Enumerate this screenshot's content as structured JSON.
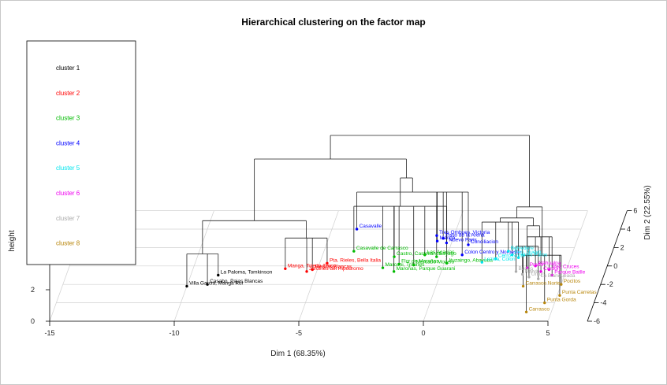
{
  "chart_data": {
    "type": "scatter",
    "title": "Hierarchical clustering on the factor map",
    "xlabel": "Dim 1 (68.35%)",
    "ylabel": "Dim 2 (22.55%)",
    "zlabel": "height",
    "xlim": [
      -15,
      5
    ],
    "ylim": [
      -6,
      6
    ],
    "x_ticks": [
      "-15",
      "-10",
      "-5",
      "0",
      "5"
    ],
    "y_ticks": [
      "-6",
      "-4",
      "-2",
      "0",
      "2",
      "4",
      "6"
    ],
    "z_ticks": [
      "0",
      "2"
    ],
    "legend": {
      "placement": "top-left",
      "entries": [
        {
          "name": "cluster 1",
          "color": "#000000"
        },
        {
          "name": "cluster 2",
          "color": "#ff0000"
        },
        {
          "name": "cluster 3",
          "color": "#00bb00"
        },
        {
          "name": "cluster 4",
          "color": "#0000ff"
        },
        {
          "name": "cluster 5",
          "color": "#00e5ee"
        },
        {
          "name": "cluster 6",
          "color": "#ee00ee"
        },
        {
          "name": "cluster 7",
          "color": "#aaaaaa"
        },
        {
          "name": "cluster 8",
          "color": "#b8860b"
        }
      ]
    },
    "points": [
      {
        "label": "Villa Garcia, Manga Rur",
        "cluster": 1,
        "dim1": -10.0,
        "dim2": -2.2
      },
      {
        "label": "Casabo, Pajas Blancas",
        "cluster": 1,
        "dim1": -9.2,
        "dim2": -2.0
      },
      {
        "label": "La Paloma, Tomkinson",
        "cluster": 1,
        "dim1": -8.9,
        "dim2": -1.0
      },
      {
        "label": "Manga, Toledo Chico",
        "cluster": 2,
        "dim1": -6.3,
        "dim2": -0.3
      },
      {
        "label": "Piedras Blancas",
        "cluster": 2,
        "dim1": -5.2,
        "dim2": -0.4
      },
      {
        "label": "Jardines del Hipodromo",
        "cluster": 2,
        "dim1": -5.4,
        "dim2": -0.6
      },
      {
        "label": "Pta. Rieles, Bella Italia",
        "cluster": 2,
        "dim1": -4.7,
        "dim2": 0.3
      },
      {
        "label": "Casavalle de Carrasco",
        "cluster": 3,
        "dim1": -3.8,
        "dim2": 1.6
      },
      {
        "label": "Marconi, Tritones",
        "cluster": 3,
        "dim1": -2.4,
        "dim2": -0.2
      },
      {
        "label": "Flor de Maroñas",
        "cluster": 3,
        "dim1": -1.8,
        "dim2": 0.2
      },
      {
        "label": "Castro, Castellanos",
        "cluster": 3,
        "dim1": -2.1,
        "dim2": 1.0
      },
      {
        "label": "Maroñas, Parque Guarani",
        "cluster": 3,
        "dim1": -1.9,
        "dim2": -0.6
      },
      {
        "label": "Mercado Modelo",
        "cluster": 3,
        "dim1": -1.2,
        "dim2": 0.1
      },
      {
        "label": "Las Acacias",
        "cluster": 3,
        "dim1": -0.9,
        "dim2": 1.2
      },
      {
        "label": "Sayago",
        "cluster": 3,
        "dim1": -0.4,
        "dim2": 1.0
      },
      {
        "label": "Ituzaingo, Abayuba",
        "cluster": 3,
        "dim1": 0.1,
        "dim2": 0.3
      },
      {
        "label": "Casavalle",
        "cluster": 4,
        "dim1": -4.0,
        "dim2": 4.0
      },
      {
        "label": "Tres Ombues, Victoria",
        "cluster": 4,
        "dim1": -0.7,
        "dim2": 3.3
      },
      {
        "label": "Paso de la Arena",
        "cluster": 4,
        "dim1": -0.4,
        "dim2": 3.0
      },
      {
        "label": "Manga",
        "cluster": 4,
        "dim1": -0.6,
        "dim2": 2.7
      },
      {
        "label": "Nuevo Paris",
        "cluster": 4,
        "dim1": -0.2,
        "dim2": 2.5
      },
      {
        "label": "Conciliacion",
        "cluster": 4,
        "dim1": 0.7,
        "dim2": 2.3
      },
      {
        "label": "Colon Centro y Noroeste",
        "cluster": 4,
        "dim1": 0.6,
        "dim2": 1.2
      },
      {
        "label": "Lezica, Colon",
        "cluster": 5,
        "dim1": 1.5,
        "dim2": 0.4
      },
      {
        "label": "Cerro Norte",
        "cluster": 5,
        "dim1": 2.0,
        "dim2": 0.8
      },
      {
        "label": "Belvedere",
        "cluster": 5,
        "dim1": 2.4,
        "dim2": 1.6
      },
      {
        "label": "Pen. Nuevo",
        "cluster": 5,
        "dim1": 2.6,
        "dim2": 1.2
      },
      {
        "label": "Aires Puros",
        "cluster": 5,
        "dim1": 2.9,
        "dim2": 0.9
      },
      {
        "label": "Prado",
        "cluster": 6,
        "dim1": 3.4,
        "dim2": -0.2
      },
      {
        "label": "Atahualpa",
        "cluster": 6,
        "dim1": 3.7,
        "dim2": 0.0
      },
      {
        "label": "Cordon",
        "cluster": 6,
        "dim1": 4.0,
        "dim2": -0.6
      },
      {
        "label": "Tres Cruces",
        "cluster": 6,
        "dim1": 4.3,
        "dim2": -0.4
      },
      {
        "label": "Parque Batlle",
        "cluster": 6,
        "dim1": 4.5,
        "dim2": -1.0
      },
      {
        "label": "Buceo",
        "cluster": 7,
        "dim1": 3.0,
        "dim2": -0.6
      },
      {
        "label": "Malvin",
        "cluster": 7,
        "dim1": 3.3,
        "dim2": -0.9
      },
      {
        "label": "Union",
        "cluster": 7,
        "dim1": 3.6,
        "dim2": -1.2
      },
      {
        "label": "La Blanqueada",
        "cluster": 7,
        "dim1": 4.0,
        "dim2": -1.4
      },
      {
        "label": "Carrasco Norte",
        "cluster": 8,
        "dim1": 3.5,
        "dim2": -2.2
      },
      {
        "label": "Pocitos",
        "cluster": 8,
        "dim1": 5.0,
        "dim2": -2.0
      },
      {
        "label": "Punta Carretas",
        "cluster": 8,
        "dim1": 5.1,
        "dim2": -3.2
      },
      {
        "label": "Punta Gorda",
        "cluster": 8,
        "dim1": 4.6,
        "dim2": -4.0
      },
      {
        "label": "Carrasco",
        "cluster": 8,
        "dim1": 4.0,
        "dim2": -5.0
      }
    ]
  }
}
